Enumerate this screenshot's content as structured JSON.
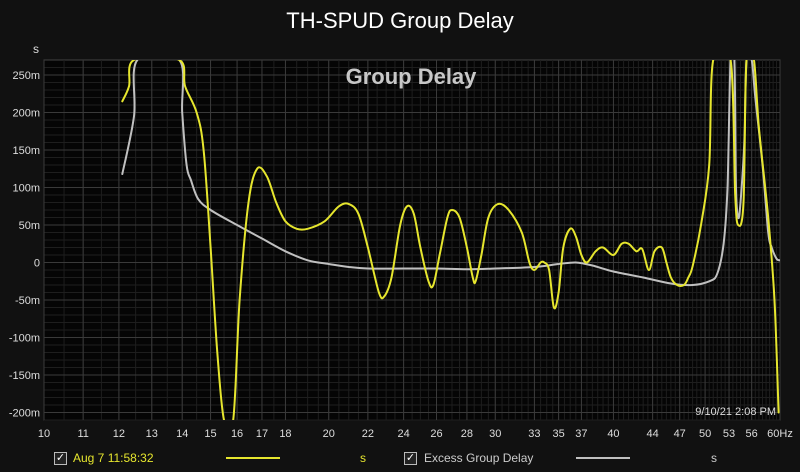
{
  "page_title": "TH-SPUD Group Delay",
  "timestamp": "9/10/21 2:08 PM",
  "legend": [
    {
      "label": "Aug 7 11:58:32",
      "unit": "s",
      "color": "#e6e62e",
      "checked": true
    },
    {
      "label": "Excess Group Delay",
      "unit": "s",
      "color": "#c0c0c0",
      "checked": true
    }
  ],
  "chart_data": {
    "type": "line",
    "title": "Group Delay",
    "ylabel": "s",
    "xlabel": "",
    "x_scale": "log",
    "xlim": [
      10,
      60
    ],
    "ylim": [
      -0.21,
      0.27
    ],
    "grid": true,
    "x_ticks": [
      10,
      11,
      12,
      13,
      14,
      15,
      16,
      17,
      18,
      20,
      22,
      24,
      26,
      28,
      30,
      33,
      35,
      37,
      40,
      44,
      47,
      50,
      53,
      56,
      60
    ],
    "x_tick_labels": [
      "10",
      "11",
      "12",
      "13",
      "14",
      "15",
      "16",
      "17",
      "18",
      "20",
      "22",
      "24",
      "26",
      "28",
      "30",
      "33",
      "35",
      "37",
      "40",
      "44",
      "47",
      "50",
      "53",
      "56",
      "60Hz"
    ],
    "y_ticks": [
      -0.2,
      -0.15,
      -0.1,
      -0.05,
      0,
      0.05,
      0.1,
      0.15,
      0.2,
      0.25
    ],
    "y_tick_labels": [
      "-200m",
      "-150m",
      "-100m",
      "-50m",
      "0",
      "50m",
      "100m",
      "150m",
      "200m",
      "250m"
    ],
    "series": [
      {
        "name": "Aug 7 11:58:32",
        "color": "#e6e62e",
        "points": [
          [
            12.1,
            0.215
          ],
          [
            12.3,
            0.235
          ],
          [
            12.45,
            0.27
          ],
          [
            13.9,
            0.27
          ],
          [
            14.1,
            0.235
          ],
          [
            14.5,
            0.2
          ],
          [
            14.75,
            0.15
          ],
          [
            15.0,
            0.02
          ],
          [
            15.25,
            -0.12
          ],
          [
            15.5,
            -0.21
          ],
          [
            15.85,
            -0.21
          ],
          [
            16.1,
            -0.05
          ],
          [
            16.45,
            0.08
          ],
          [
            16.8,
            0.125
          ],
          [
            17.2,
            0.115
          ],
          [
            17.6,
            0.08
          ],
          [
            18.0,
            0.055
          ],
          [
            18.5,
            0.045
          ],
          [
            19.0,
            0.045
          ],
          [
            19.8,
            0.055
          ],
          [
            20.5,
            0.075
          ],
          [
            21.0,
            0.078
          ],
          [
            21.5,
            0.065
          ],
          [
            22.0,
            0.02
          ],
          [
            22.6,
            -0.04
          ],
          [
            22.9,
            -0.045
          ],
          [
            23.3,
            -0.02
          ],
          [
            23.8,
            0.05
          ],
          [
            24.2,
            0.075
          ],
          [
            24.6,
            0.065
          ],
          [
            25.0,
            0.02
          ],
          [
            25.5,
            -0.025
          ],
          [
            25.8,
            -0.03
          ],
          [
            26.2,
            0.01
          ],
          [
            26.7,
            0.06
          ],
          [
            27.0,
            0.07
          ],
          [
            27.5,
            0.06
          ],
          [
            28.0,
            0.02
          ],
          [
            28.4,
            -0.02
          ],
          [
            28.6,
            -0.025
          ],
          [
            29.0,
            0.01
          ],
          [
            29.5,
            0.06
          ],
          [
            30.2,
            0.078
          ],
          [
            31.0,
            0.07
          ],
          [
            32.0,
            0.04
          ],
          [
            32.6,
            0.0
          ],
          [
            33.0,
            -0.01
          ],
          [
            33.5,
            0.0
          ],
          [
            33.8,
            0.0
          ],
          [
            34.2,
            -0.01
          ],
          [
            34.6,
            -0.06
          ],
          [
            35.0,
            -0.04
          ],
          [
            35.4,
            0.02
          ],
          [
            36.0,
            0.045
          ],
          [
            36.5,
            0.035
          ],
          [
            37.0,
            0.01
          ],
          [
            37.5,
            0.0
          ],
          [
            38.3,
            0.015
          ],
          [
            39.0,
            0.02
          ],
          [
            40.0,
            0.01
          ],
          [
            40.8,
            0.025
          ],
          [
            41.5,
            0.025
          ],
          [
            42.3,
            0.015
          ],
          [
            42.9,
            0.018
          ],
          [
            43.6,
            -0.01
          ],
          [
            44.2,
            0.015
          ],
          [
            45.0,
            0.02
          ],
          [
            45.5,
            0.0
          ],
          [
            46.0,
            -0.02
          ],
          [
            46.7,
            -0.03
          ],
          [
            47.5,
            -0.03
          ],
          [
            48.0,
            -0.02
          ],
          [
            48.5,
            -0.005
          ],
          [
            49.5,
            0.05
          ],
          [
            50.5,
            0.13
          ],
          [
            51.0,
            0.27
          ],
          [
            53.2,
            0.27
          ],
          [
            53.8,
            0.09
          ],
          [
            54.2,
            0.05
          ],
          [
            54.9,
            0.08
          ],
          [
            55.3,
            0.27
          ],
          [
            56.3,
            0.27
          ],
          [
            57.0,
            0.18
          ],
          [
            58.3,
            0.06
          ],
          [
            59.2,
            -0.05
          ],
          [
            59.8,
            -0.2
          ]
        ]
      },
      {
        "name": "Excess Group Delay",
        "color": "#c0c0c0",
        "points": [
          [
            12.1,
            0.118
          ],
          [
            12.45,
            0.195
          ],
          [
            12.55,
            0.27
          ],
          [
            13.9,
            0.27
          ],
          [
            14.0,
            0.2
          ],
          [
            14.15,
            0.13
          ],
          [
            14.3,
            0.11
          ],
          [
            14.55,
            0.085
          ],
          [
            15.0,
            0.07
          ],
          [
            16.0,
            0.05
          ],
          [
            17.0,
            0.032
          ],
          [
            18.0,
            0.015
          ],
          [
            19.0,
            0.003
          ],
          [
            20.0,
            -0.002
          ],
          [
            21.0,
            -0.006
          ],
          [
            22.0,
            -0.008
          ],
          [
            24.0,
            -0.008
          ],
          [
            26.0,
            -0.008
          ],
          [
            28.0,
            -0.009
          ],
          [
            30.0,
            -0.008
          ],
          [
            33.0,
            -0.006
          ],
          [
            35.0,
            -0.002
          ],
          [
            36.5,
            0.0
          ],
          [
            38.0,
            -0.004
          ],
          [
            40.0,
            -0.012
          ],
          [
            43.0,
            -0.02
          ],
          [
            46.0,
            -0.028
          ],
          [
            48.5,
            -0.03
          ],
          [
            50.5,
            -0.025
          ],
          [
            51.5,
            -0.015
          ],
          [
            52.3,
            0.025
          ],
          [
            52.8,
            0.1
          ],
          [
            53.2,
            0.27
          ],
          [
            53.7,
            0.27
          ],
          [
            53.9,
            0.1
          ],
          [
            54.2,
            0.06
          ],
          [
            54.5,
            0.08
          ],
          [
            55.0,
            0.16
          ],
          [
            55.3,
            0.27
          ],
          [
            56.0,
            0.27
          ],
          [
            56.5,
            0.22
          ],
          [
            57.5,
            0.13
          ],
          [
            58.3,
            0.04
          ],
          [
            58.8,
            0.02
          ],
          [
            59.5,
            0.005
          ],
          [
            60.0,
            0.003
          ]
        ]
      }
    ]
  }
}
